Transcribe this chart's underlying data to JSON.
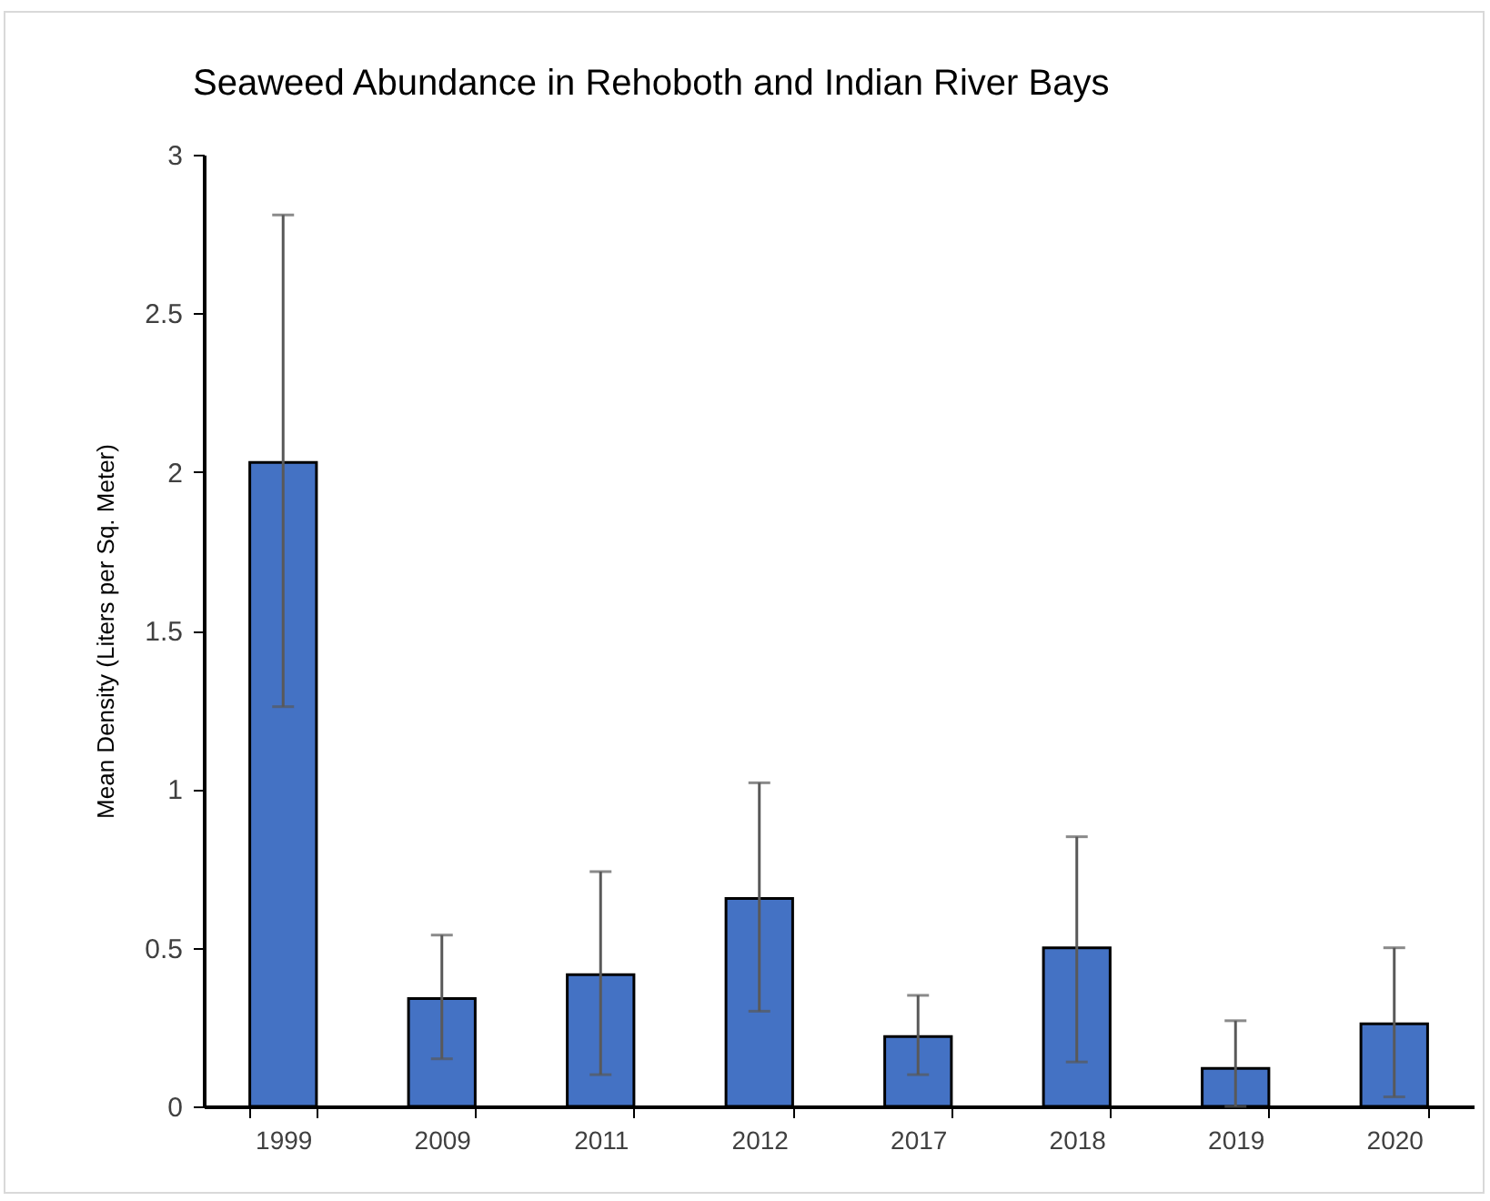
{
  "chart_data": {
    "type": "bar",
    "title": "Seaweed Abundance in Rehoboth and Indian River Bays",
    "ylabel": "Mean Density (Liters per Sq. Meter)",
    "categories": [
      "1999",
      "2009",
      "2011",
      "2012",
      "2017",
      "2018",
      "2019",
      "2020"
    ],
    "values": [
      2.03,
      0.34,
      0.415,
      0.655,
      0.22,
      0.5,
      0.12,
      0.26
    ],
    "errors": [
      [
        1.26,
        2.81
      ],
      [
        0.15,
        0.54
      ],
      [
        0.1,
        0.74
      ],
      [
        0.3,
        1.02
      ],
      [
        0.1,
        0.35
      ],
      [
        0.14,
        0.85
      ],
      [
        0,
        0.27
      ],
      [
        0.03,
        0.5
      ]
    ],
    "color": "#4472c4",
    "ylim": [
      0,
      3
    ],
    "yticks": [
      0,
      0.5,
      1,
      1.5,
      2,
      2.5,
      3
    ],
    "grid": false
  }
}
